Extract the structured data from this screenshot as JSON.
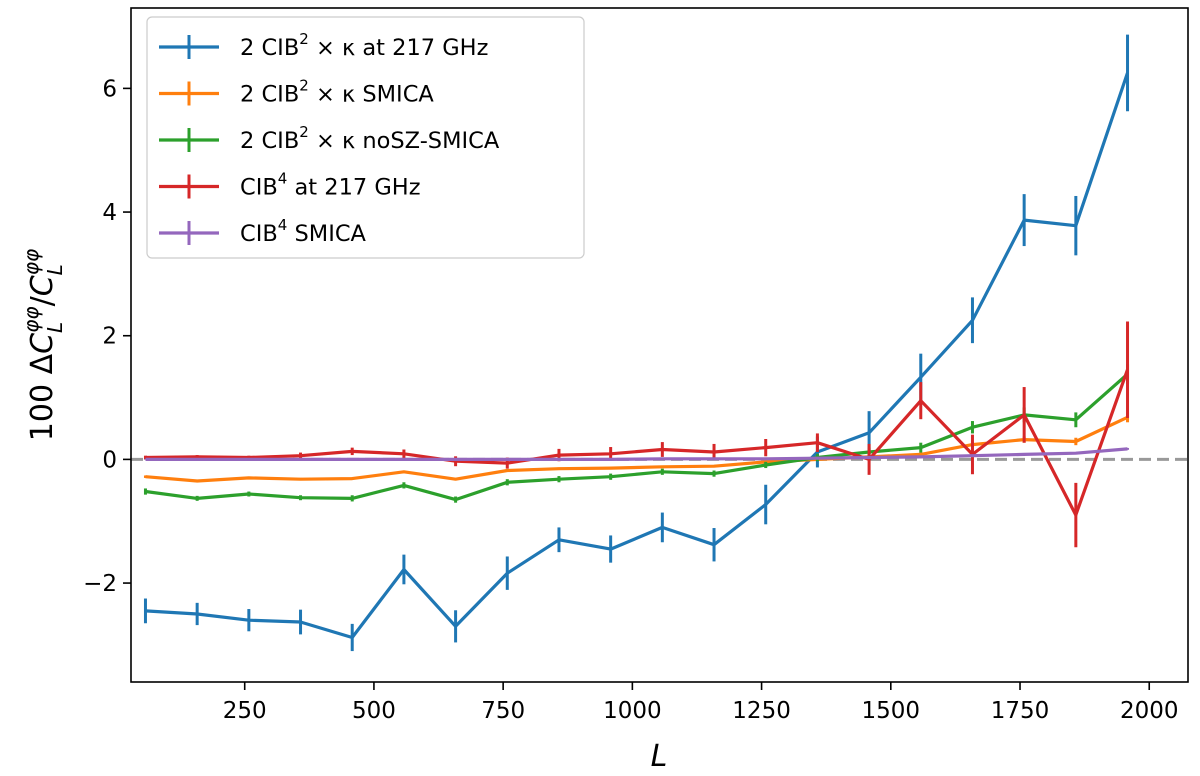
{
  "chart_data": {
    "type": "line",
    "title": "",
    "xlabel": "L",
    "ylabel": "100 ΔC_L^φφ / C_L^φφ",
    "xlim": [
      30,
      2075
    ],
    "ylim": [
      -3.6,
      7.3
    ],
    "xticks": [
      250,
      500,
      750,
      1000,
      1250,
      1500,
      1750,
      2000
    ],
    "xtick_labels": [
      "250",
      "500",
      "750",
      "1000",
      "1250",
      "1500",
      "1750",
      "2000"
    ],
    "yticks": [
      -2,
      0,
      2,
      4,
      6
    ],
    "ytick_labels": [
      "−2",
      "0",
      "2",
      "4",
      "6"
    ],
    "reference_line": {
      "y": 0,
      "style": "dashed",
      "color": "#999999"
    },
    "legend_position": "top-left",
    "x": [
      58,
      158,
      258,
      358,
      458,
      558,
      658,
      758,
      858,
      958,
      1058,
      1158,
      1258,
      1358,
      1458,
      1558,
      1658,
      1758,
      1858,
      1958
    ],
    "series": [
      {
        "name": "2 CIB² × κ at 217 GHz",
        "label_main": "2 CIB",
        "label_sup": "2",
        "label_rest": " × κ at 217 GHz",
        "color": "#1f77b4",
        "values": [
          -2.45,
          -2.5,
          -2.6,
          -2.63,
          -2.88,
          -1.78,
          -2.7,
          -1.84,
          -1.3,
          -1.45,
          -1.1,
          -1.38,
          -0.73,
          0.12,
          0.43,
          1.33,
          2.25,
          3.87,
          3.78,
          6.25
        ],
        "errors": [
          0.2,
          0.18,
          0.18,
          0.2,
          0.22,
          0.24,
          0.26,
          0.27,
          0.2,
          0.22,
          0.24,
          0.27,
          0.32,
          0.25,
          0.35,
          0.38,
          0.37,
          0.42,
          0.48,
          0.62
        ]
      },
      {
        "name": "2 CIB² × κ SMICA",
        "label_main": "2 CIB",
        "label_sup": "2",
        "label_rest": " × κ SMICA",
        "color": "#ff7f0e",
        "values": [
          -0.28,
          -0.35,
          -0.3,
          -0.32,
          -0.31,
          -0.2,
          -0.32,
          -0.18,
          -0.15,
          -0.14,
          -0.12,
          -0.11,
          -0.04,
          0.0,
          0.04,
          0.08,
          0.24,
          0.32,
          0.29,
          0.68
        ],
        "errors": [
          0.02,
          0.02,
          0.02,
          0.02,
          0.02,
          0.02,
          0.02,
          0.02,
          0.02,
          0.02,
          0.02,
          0.02,
          0.02,
          0.02,
          0.02,
          0.03,
          0.04,
          0.05,
          0.06,
          0.08
        ]
      },
      {
        "name": "2 CIB² × κ noSZ-SMICA",
        "label_main": "2 CIB",
        "label_sup": "2",
        "label_rest": " × κ noSZ-SMICA",
        "color": "#2ca02c",
        "values": [
          -0.52,
          -0.63,
          -0.56,
          -0.62,
          -0.63,
          -0.42,
          -0.65,
          -0.37,
          -0.32,
          -0.28,
          -0.2,
          -0.23,
          -0.09,
          0.03,
          0.12,
          0.19,
          0.52,
          0.72,
          0.64,
          1.38
        ],
        "errors": [
          0.05,
          0.04,
          0.04,
          0.04,
          0.05,
          0.05,
          0.05,
          0.05,
          0.05,
          0.05,
          0.05,
          0.05,
          0.05,
          0.06,
          0.07,
          0.08,
          0.1,
          0.12,
          0.12,
          0.16
        ]
      },
      {
        "name": "CIB⁴ at 217 GHz",
        "label_main": "CIB",
        "label_sup": "4",
        "label_rest": " at 217 GHz",
        "color": "#d62728",
        "values": [
          0.03,
          0.04,
          0.03,
          0.06,
          0.13,
          0.09,
          -0.03,
          -0.06,
          0.07,
          0.09,
          0.16,
          0.12,
          0.19,
          0.27,
          0.0,
          0.95,
          0.08,
          0.72,
          -0.9,
          1.45
        ],
        "errors": [
          0.03,
          0.03,
          0.03,
          0.05,
          0.06,
          0.07,
          0.08,
          0.09,
          0.1,
          0.11,
          0.12,
          0.13,
          0.14,
          0.15,
          0.25,
          0.3,
          0.32,
          0.45,
          0.52,
          0.78
        ]
      },
      {
        "name": "CIB⁴ SMICA",
        "label_main": "CIB",
        "label_sup": "4",
        "label_rest": " SMICA",
        "color": "#9467bd",
        "values": [
          0.0,
          0.0,
          0.0,
          0.0,
          0.0,
          0.0,
          0.0,
          0.0,
          0.0,
          0.0,
          0.01,
          0.01,
          0.01,
          0.02,
          0.03,
          0.04,
          0.06,
          0.08,
          0.1,
          0.17
        ],
        "errors": [
          0.005,
          0.005,
          0.005,
          0.005,
          0.005,
          0.005,
          0.005,
          0.005,
          0.005,
          0.005,
          0.005,
          0.005,
          0.005,
          0.005,
          0.005,
          0.005,
          0.01,
          0.01,
          0.01,
          0.015
        ]
      }
    ]
  }
}
